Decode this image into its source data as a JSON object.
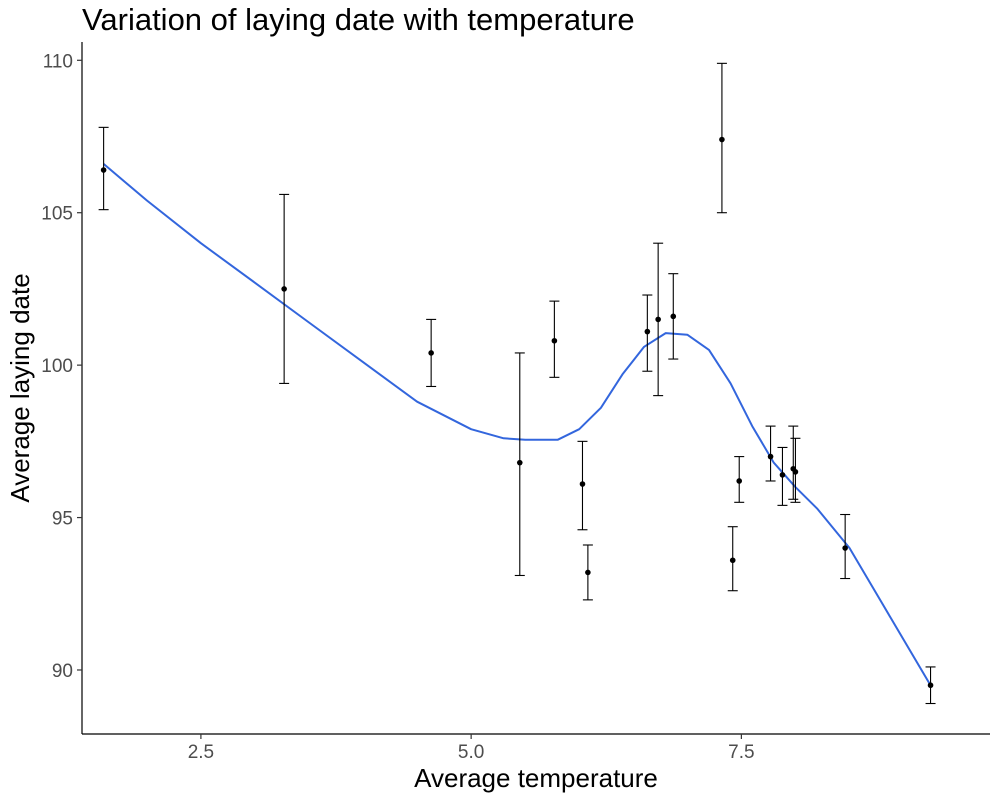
{
  "chart_data": {
    "type": "scatter",
    "title": "Variation of laying date with temperature",
    "xlabel": "Average temperature",
    "ylabel": "Average laying date",
    "xlim": [
      1.4,
      9.8
    ],
    "ylim": [
      87.9,
      110.6
    ],
    "x_ticks": [
      2.5,
      5.0,
      7.5
    ],
    "x_tick_labels": [
      "2.5",
      "5.0",
      "7.5"
    ],
    "y_ticks": [
      90,
      95,
      100,
      105,
      110
    ],
    "y_tick_labels": [
      "90",
      "95",
      "100",
      "105",
      "110"
    ],
    "grid": false,
    "points": [
      {
        "x": 1.6,
        "y": 106.4,
        "ymin": 105.1,
        "ymax": 107.8
      },
      {
        "x": 3.27,
        "y": 102.5,
        "ymin": 99.4,
        "ymax": 105.6
      },
      {
        "x": 4.63,
        "y": 100.4,
        "ymin": 99.3,
        "ymax": 101.5
      },
      {
        "x": 5.45,
        "y": 96.8,
        "ymin": 93.1,
        "ymax": 100.4
      },
      {
        "x": 5.77,
        "y": 100.8,
        "ymin": 99.6,
        "ymax": 102.1
      },
      {
        "x": 6.03,
        "y": 96.1,
        "ymin": 94.6,
        "ymax": 97.5
      },
      {
        "x": 6.08,
        "y": 93.2,
        "ymin": 92.3,
        "ymax": 94.1
      },
      {
        "x": 6.63,
        "y": 101.1,
        "ymin": 99.8,
        "ymax": 102.3
      },
      {
        "x": 6.73,
        "y": 101.5,
        "ymin": 99.0,
        "ymax": 104.0
      },
      {
        "x": 6.87,
        "y": 101.6,
        "ymin": 100.2,
        "ymax": 103.0
      },
      {
        "x": 7.32,
        "y": 107.4,
        "ymin": 105.0,
        "ymax": 109.9
      },
      {
        "x": 7.42,
        "y": 93.6,
        "ymin": 92.6,
        "ymax": 94.7
      },
      {
        "x": 7.48,
        "y": 96.2,
        "ymin": 95.5,
        "ymax": 97.0
      },
      {
        "x": 7.77,
        "y": 97.0,
        "ymin": 96.2,
        "ymax": 98.0
      },
      {
        "x": 7.88,
        "y": 96.4,
        "ymin": 95.4,
        "ymax": 97.3
      },
      {
        "x": 7.98,
        "y": 96.6,
        "ymin": 95.6,
        "ymax": 98.0
      },
      {
        "x": 8.0,
        "y": 96.5,
        "ymin": 95.5,
        "ymax": 97.6
      },
      {
        "x": 8.46,
        "y": 94.0,
        "ymin": 93.0,
        "ymax": 95.1
      },
      {
        "x": 9.25,
        "y": 89.5,
        "ymin": 88.9,
        "ymax": 90.1
      }
    ],
    "smooth_line": {
      "color": "#3366dd",
      "x": [
        1.6,
        2.0,
        2.5,
        3.0,
        3.5,
        4.0,
        4.5,
        5.0,
        5.3,
        5.5,
        5.8,
        6.0,
        6.2,
        6.4,
        6.6,
        6.8,
        7.0,
        7.2,
        7.4,
        7.6,
        7.8,
        8.0,
        8.2,
        8.5,
        8.8,
        9.0,
        9.25
      ],
      "y": [
        106.6,
        105.4,
        104.0,
        102.7,
        101.4,
        100.1,
        98.8,
        97.9,
        97.6,
        97.55,
        97.55,
        97.9,
        98.6,
        99.7,
        100.6,
        101.05,
        101.0,
        100.5,
        99.4,
        98.0,
        96.8,
        96.0,
        95.3,
        94.0,
        92.2,
        91.0,
        89.5
      ]
    },
    "point_color": "#000000",
    "errorbar_color": "#000000"
  }
}
